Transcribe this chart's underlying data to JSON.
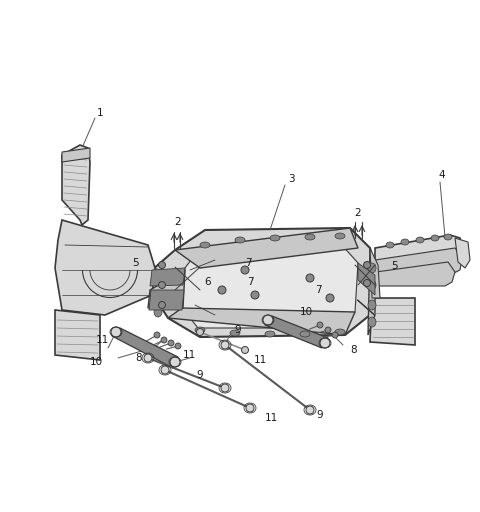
{
  "bg_color": "#ffffff",
  "line_color": "#3a3a3a",
  "gray_dark": "#5a5a5a",
  "gray_mid": "#8a8a8a",
  "gray_light": "#b8b8b8",
  "gray_fill": "#c8c8c8",
  "gray_fill2": "#d8d8d8",
  "label_color": "#1a1a1a",
  "figsize": [
    4.8,
    5.12
  ],
  "dpi": 100,
  "label_fs": 7.5
}
